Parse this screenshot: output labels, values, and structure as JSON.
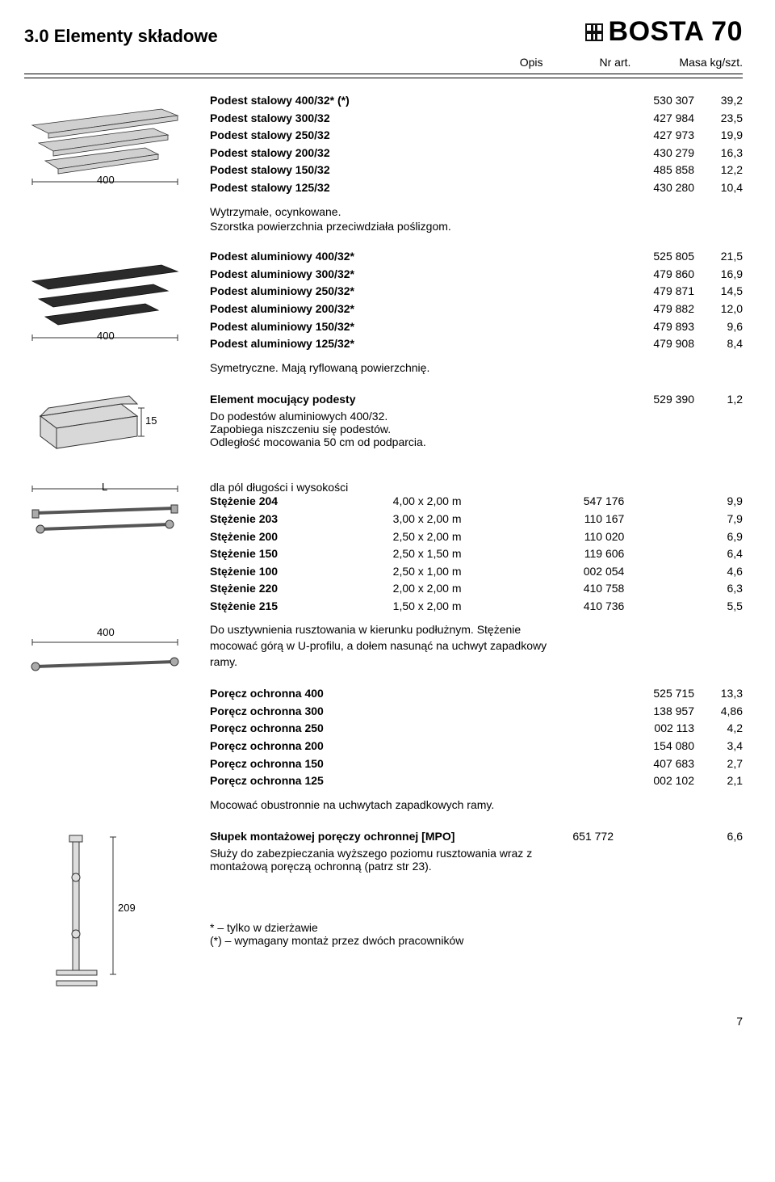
{
  "header": {
    "section_number": "3.0",
    "section_title": "Elementy składowe",
    "brand": "BOSTA 70",
    "col_opis": "Opis",
    "col_art": "Nr art.",
    "col_mass": "Masa kg/szt."
  },
  "dim_400": "400",
  "dim_15": "15",
  "dim_L": "L",
  "dim_209": "209",
  "group1": {
    "items": [
      {
        "label": "Podest stalowy 400/32* (*)",
        "art": "530 307",
        "mass": "39,2"
      },
      {
        "label": "Podest stalowy 300/32",
        "art": "427 984",
        "mass": "23,5"
      },
      {
        "label": "Podest stalowy 250/32",
        "art": "427 973",
        "mass": "19,9"
      },
      {
        "label": "Podest stalowy 200/32",
        "art": "430 279",
        "mass": "16,3"
      },
      {
        "label": "Podest stalowy 150/32",
        "art": "485 858",
        "mass": "12,2"
      },
      {
        "label": "Podest stalowy 125/32",
        "art": "430 280",
        "mass": "10,4"
      }
    ],
    "note1": "Wytrzymałe, ocynkowane.",
    "note2": "Szorstka powierzchnia przeciwdziała poślizgom."
  },
  "group2": {
    "items": [
      {
        "label": "Podest aluminiowy 400/32*",
        "art": "525 805",
        "mass": "21,5"
      },
      {
        "label": "Podest aluminiowy 300/32*",
        "art": "479 860",
        "mass": "16,9"
      },
      {
        "label": "Podest aluminiowy 250/32*",
        "art": "479 871",
        "mass": "14,5"
      },
      {
        "label": "Podest aluminiowy 200/32*",
        "art": "479 882",
        "mass": "12,0"
      },
      {
        "label": "Podest aluminiowy 150/32*",
        "art": "479 893",
        "mass": "9,6"
      },
      {
        "label": "Podest aluminiowy 125/32*",
        "art": "479 908",
        "mass": "8,4"
      }
    ],
    "note": "Symetryczne. Mają ryflowaną powierzchnię."
  },
  "group3": {
    "item": {
      "label": "Element mocujący podesty",
      "art": "529 390",
      "mass": "1,2"
    },
    "note1": "Do podestów aluminiowych 400/32.",
    "note2": "Zapobiega niszczeniu się podestów.",
    "note3": "Odległość mocowania 50 cm od podparcia."
  },
  "group4": {
    "intro": "dla pól długości i wysokości",
    "items": [
      {
        "label": "Stężenie 204",
        "dim": "4,00 x 2,00 m",
        "art": "547 176",
        "mass": "9,9"
      },
      {
        "label": "Stężenie 203",
        "dim": "3,00 x 2,00 m",
        "art": "110 167",
        "mass": "7,9"
      },
      {
        "label": "Stężenie 200",
        "dim": "2,50 x 2,00 m",
        "art": "110 020",
        "mass": "6,9"
      },
      {
        "label": "Stężenie 150",
        "dim": "2,50 x 1,50 m",
        "art": "119 606",
        "mass": "6,4"
      },
      {
        "label": "Stężenie 100",
        "dim": "2,50 x 1,00 m",
        "art": "002 054",
        "mass": "4,6"
      },
      {
        "label": "Stężenie 220",
        "dim": "2,00 x 2,00 m",
        "art": "410 758",
        "mass": "6,3"
      },
      {
        "label": "Stężenie 215",
        "dim": "1,50 x 2,00 m",
        "art": "410 736",
        "mass": "5,5"
      }
    ],
    "note": "Do usztywnienia rusztowania w kierunku podłużnym. Stężenie mocować górą w  U-profilu, a dołem nasunąć na uchwyt zapadkowy ramy."
  },
  "group5": {
    "items": [
      {
        "label": "Poręcz ochronna 400",
        "art": "525 715",
        "mass": "13,3"
      },
      {
        "label": "Poręcz ochronna 300",
        "art": "138 957",
        "mass": "4,86"
      },
      {
        "label": "Poręcz ochronna 250",
        "art": "002 113",
        "mass": "4,2"
      },
      {
        "label": "Poręcz ochronna 200",
        "art": "154 080",
        "mass": "3,4"
      },
      {
        "label": "Poręcz ochronna 150",
        "art": "407 683",
        "mass": "2,7"
      },
      {
        "label": "Poręcz ochronna 125",
        "art": "002 102",
        "mass": "2,1"
      }
    ],
    "note": "Mocować obustronnie na uchwytach zapadkowych ramy."
  },
  "group6": {
    "title": "Słupek montażowej poręczy ochronnej [MPO]",
    "art": "651 772",
    "mass": "6,6",
    "note": "Służy do zabezpieczania wyższego poziomu rusztowania wraz z montażową poręczą ochronną (patrz str 23)."
  },
  "footnotes": {
    "f1": "* – tylko w dzierżawie",
    "f2": "(*) – wymagany montaż przez dwóch pracowników"
  },
  "page": "7"
}
